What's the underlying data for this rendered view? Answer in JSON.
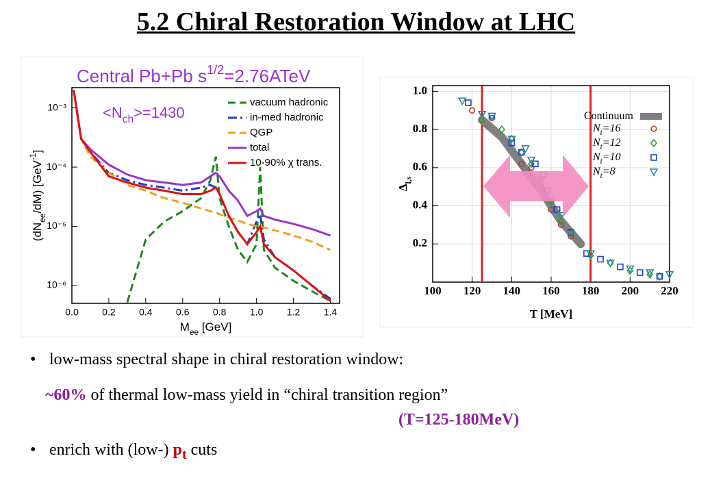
{
  "slide": {
    "title": "5.2 Chiral Restoration Window at LHC",
    "bullets": [
      {
        "text": "low-mass spectral shape in chiral restoration window:"
      },
      {
        "highlight": "~60%",
        "text": " of thermal low-mass yield in “chiral transition region”",
        "window": "(T=125-180MeV)"
      },
      {
        "text": "enrich with (low-) ",
        "p": "p",
        "sub": "t",
        "tail": " cuts"
      }
    ]
  },
  "chart_data": [
    {
      "type": "line",
      "title": [
        {
          "t": "Central Pb+Pb s"
        },
        {
          "t": "1/2",
          "s": "sup"
        },
        {
          "t": "=2.76ATeV"
        }
      ],
      "title_color": "#9933cc",
      "annotation": [
        {
          "t": "<N"
        },
        {
          "t": "ch",
          "s": "sub"
        },
        {
          "t": ">=1430"
        }
      ],
      "xlabel": [
        {
          "t": "M"
        },
        {
          "t": "ee",
          "s": "sub"
        },
        {
          "t": " [GeV]"
        }
      ],
      "ylabel": [
        {
          "t": "(dN"
        },
        {
          "t": "ee",
          "s": "sub"
        },
        {
          "t": "/dM) [GeV"
        },
        {
          "t": "-1",
          "s": "sup"
        },
        {
          "t": "]"
        }
      ],
      "x": [
        0.01,
        0.05,
        0.1,
        0.2,
        0.3,
        0.4,
        0.5,
        0.6,
        0.7,
        0.75,
        0.78,
        0.8,
        0.85,
        0.9,
        0.95,
        1.0,
        1.02,
        1.04,
        1.1,
        1.2,
        1.3,
        1.4
      ],
      "series": [
        {
          "name": "vacuum hadronic",
          "color": "#1a8a1a",
          "dash": "dashed",
          "values": [
            null,
            null,
            null,
            null,
            5.2e-07,
            6e-06,
            1.2e-05,
            1.8e-05,
            3e-05,
            6e-05,
            0.00015,
            3e-05,
            1e-05,
            4e-06,
            2.5e-06,
            5e-06,
            0.0001,
            4e-06,
            2e-06,
            1.2e-06,
            8e-07,
            5.5e-07
          ]
        },
        {
          "name": "in-med hadronic",
          "color": "#1a3fd0",
          "dash": "dashdot",
          "values": [
            0.002,
            0.0003,
            0.00018,
            8e-05,
            6e-05,
            5e-05,
            4.5e-05,
            4e-05,
            4.5e-05,
            5e-05,
            4.5e-05,
            3.5e-05,
            1.5e-05,
            8e-06,
            5e-06,
            1.2e-05,
            1.6e-05,
            6e-06,
            3e-06,
            1.8e-06,
            1e-06,
            6e-07
          ]
        },
        {
          "name": "QGP",
          "color": "#f0a020",
          "dash": "dashed",
          "values": [
            0.002,
            0.0003,
            0.00015,
            8e-05,
            5e-05,
            4e-05,
            3e-05,
            2.5e-05,
            2e-05,
            1.8e-05,
            1.7e-05,
            1.6e-05,
            1.4e-05,
            1.25e-05,
            1.1e-05,
            1e-05,
            9.8e-06,
            9.5e-06,
            8.5e-06,
            7e-06,
            5.5e-06,
            4e-06
          ]
        },
        {
          "name": "total",
          "color": "#9933cc",
          "dash": "solid",
          "values": [
            0.002,
            0.0003,
            0.0002,
            0.00011,
            7.5e-05,
            6e-05,
            5.5e-05,
            5e-05,
            5.5e-05,
            7e-05,
            8e-05,
            7e-05,
            4e-05,
            2.7e-05,
            1.5e-05,
            1.8e-05,
            2e-05,
            1.5e-05,
            1.3e-05,
            1.1e-05,
            9e-06,
            7e-06
          ]
        },
        {
          "name": "10-90% χ trans.",
          "color": "#e01010",
          "dash": "solid",
          "values": [
            0.002,
            0.0003,
            0.00018,
            7e-05,
            5.5e-05,
            4.5e-05,
            4e-05,
            3.5e-05,
            3.5e-05,
            4e-05,
            4.5e-05,
            3.5e-05,
            1.5e-05,
            8e-06,
            5e-06,
            8e-06,
            1e-05,
            5e-06,
            3e-06,
            1.8e-06,
            1e-06,
            5.5e-07
          ]
        }
      ],
      "xlim": [
        0,
        1.45
      ],
      "ylim": [
        5e-07,
        0.0022
      ],
      "ylog": true,
      "xticks": [
        {
          "value": 0,
          "label": "0.0"
        },
        0.2,
        0.4,
        0.6,
        0.8,
        {
          "value": 1,
          "label": "1.0"
        },
        1.2,
        1.4
      ],
      "yticks": [
        {
          "value": 1e-06,
          "label": "10⁻⁶"
        },
        {
          "value": 1e-05,
          "label": "10⁻⁵"
        },
        {
          "value": 0.0001,
          "label": "10⁻⁴"
        },
        {
          "value": 0.001,
          "label": "10⁻³"
        }
      ],
      "grid": false,
      "legend": "upper right"
    },
    {
      "type": "scatter",
      "xlabel": [
        {
          "t": "T [MeV]"
        }
      ],
      "ylabel": [
        {
          "t": "Δ"
        },
        {
          "t": "l,s",
          "s": "sub"
        }
      ],
      "xlim": [
        100,
        220
      ],
      "ylim": [
        0,
        1.03
      ],
      "xticks": [
        100,
        120,
        140,
        160,
        180,
        200,
        220
      ],
      "yticks": [
        0.2,
        0.4,
        0.6,
        0.8,
        {
          "value": 1,
          "label": "1.0"
        }
      ],
      "grid": true,
      "legend": "upper right",
      "vlines": [
        125,
        180
      ],
      "vline_color": "#e02020",
      "band": {
        "name": [
          {
            "t": "Continuum"
          }
        ],
        "color": "#808080",
        "x": [
          125,
          135,
          145,
          155,
          165,
          175
        ],
        "values": [
          0.85,
          0.76,
          0.62,
          0.48,
          0.32,
          0.2
        ]
      },
      "series": [
        {
          "name": [
            {
              "t": "N"
            },
            {
              "t": "t",
              "s": "sub"
            },
            {
              "t": "=16"
            }
          ],
          "color": "#c0392b",
          "marker": "circle",
          "x": [
            120,
            130,
            145,
            150,
            155,
            157,
            160,
            165,
            170
          ],
          "values": [
            0.9,
            0.86,
            0.62,
            0.6,
            0.5,
            0.44,
            0.38,
            0.3,
            0.24
          ]
        },
        {
          "name": [
            {
              "t": "N"
            },
            {
              "t": "t",
              "s": "sub"
            },
            {
              "t": "=12"
            }
          ],
          "color": "#2e9e2e",
          "marker": "diamond",
          "x": [
            125,
            135,
            140,
            145,
            150,
            155,
            160,
            165,
            170,
            180,
            190,
            200,
            210,
            215
          ],
          "values": [
            0.85,
            0.8,
            0.75,
            0.68,
            0.62,
            0.52,
            0.42,
            0.32,
            0.26,
            0.14,
            0.1,
            0.06,
            0.04,
            0.03
          ]
        },
        {
          "name": [
            {
              "t": "N"
            },
            {
              "t": "t",
              "s": "sub"
            },
            {
              "t": "=10"
            }
          ],
          "color": "#2040d0",
          "marker": "square",
          "x": [
            118,
            130,
            140,
            145,
            152,
            156,
            158,
            163,
            170,
            178,
            185,
            195,
            205,
            215
          ],
          "values": [
            0.94,
            0.87,
            0.73,
            0.68,
            0.62,
            0.56,
            0.48,
            0.38,
            0.26,
            0.15,
            0.12,
            0.08,
            0.05,
            0.03
          ]
        },
        {
          "name": [
            {
              "t": "N"
            },
            {
              "t": "t",
              "s": "sub"
            },
            {
              "t": "=8"
            }
          ],
          "color": "#2a8a9a",
          "marker": "triangle",
          "x": [
            115,
            125,
            130,
            140,
            147,
            150,
            155,
            160,
            165,
            170,
            180,
            190,
            200,
            210,
            220
          ],
          "values": [
            0.95,
            0.88,
            0.87,
            0.75,
            0.7,
            0.64,
            0.54,
            0.43,
            0.35,
            0.25,
            0.15,
            0.1,
            0.07,
            0.05,
            0.04
          ]
        }
      ]
    }
  ]
}
